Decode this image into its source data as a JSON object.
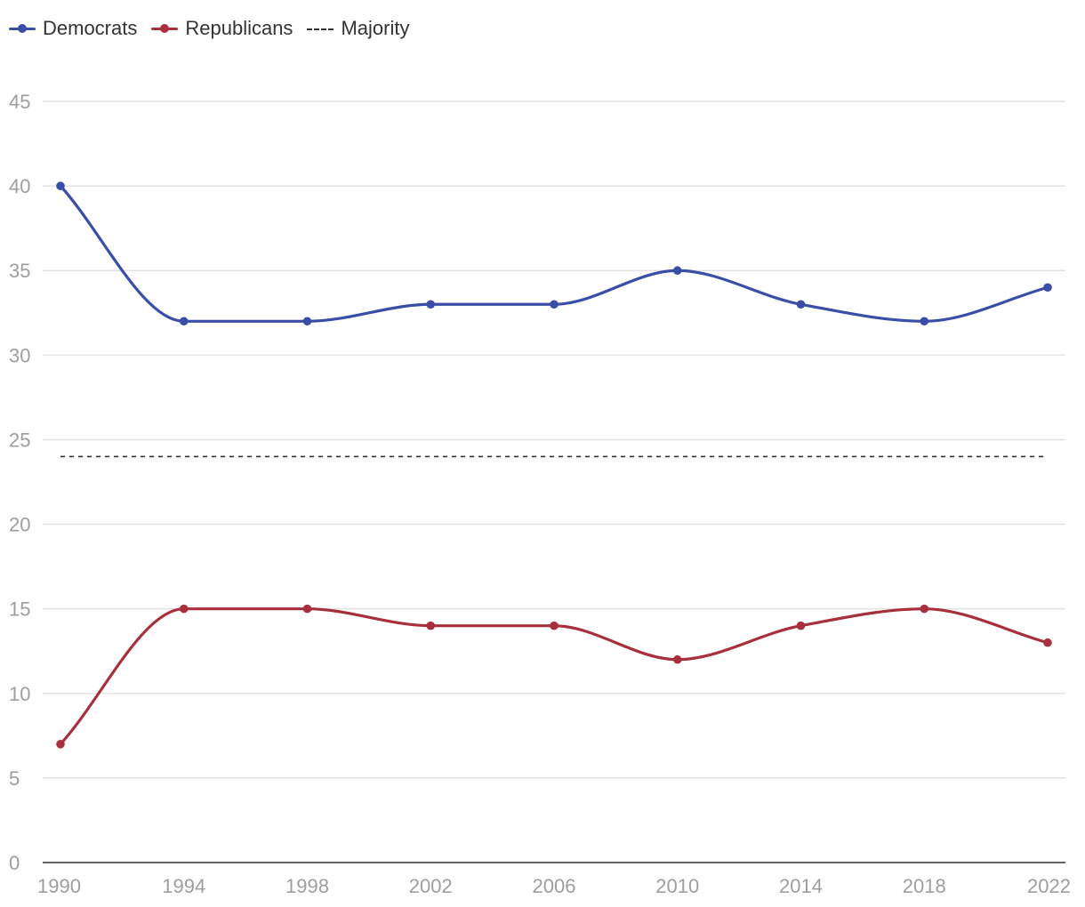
{
  "chart_data": {
    "type": "line",
    "x": [
      "1990",
      "1994",
      "1998",
      "2002",
      "2006",
      "2010",
      "2014",
      "2018",
      "2022"
    ],
    "series": [
      {
        "name": "Democrats",
        "color": "#3a4ea8",
        "values": [
          40,
          32,
          32,
          33,
          33,
          35,
          33,
          32,
          34
        ]
      },
      {
        "name": "Republicans",
        "color": "#a8303c",
        "values": [
          7,
          15,
          15,
          14,
          14,
          12,
          14,
          15,
          13
        ]
      }
    ],
    "reference_line": {
      "name": "Majority",
      "value": 24,
      "style": "dashed",
      "color": "#333333"
    },
    "y_ticks": [
      0,
      5,
      10,
      15,
      20,
      25,
      30,
      35,
      40,
      45
    ],
    "ylim": [
      0,
      45
    ],
    "grid": true,
    "legend": "top-left",
    "title": "",
    "xlabel": "",
    "ylabel": ""
  }
}
